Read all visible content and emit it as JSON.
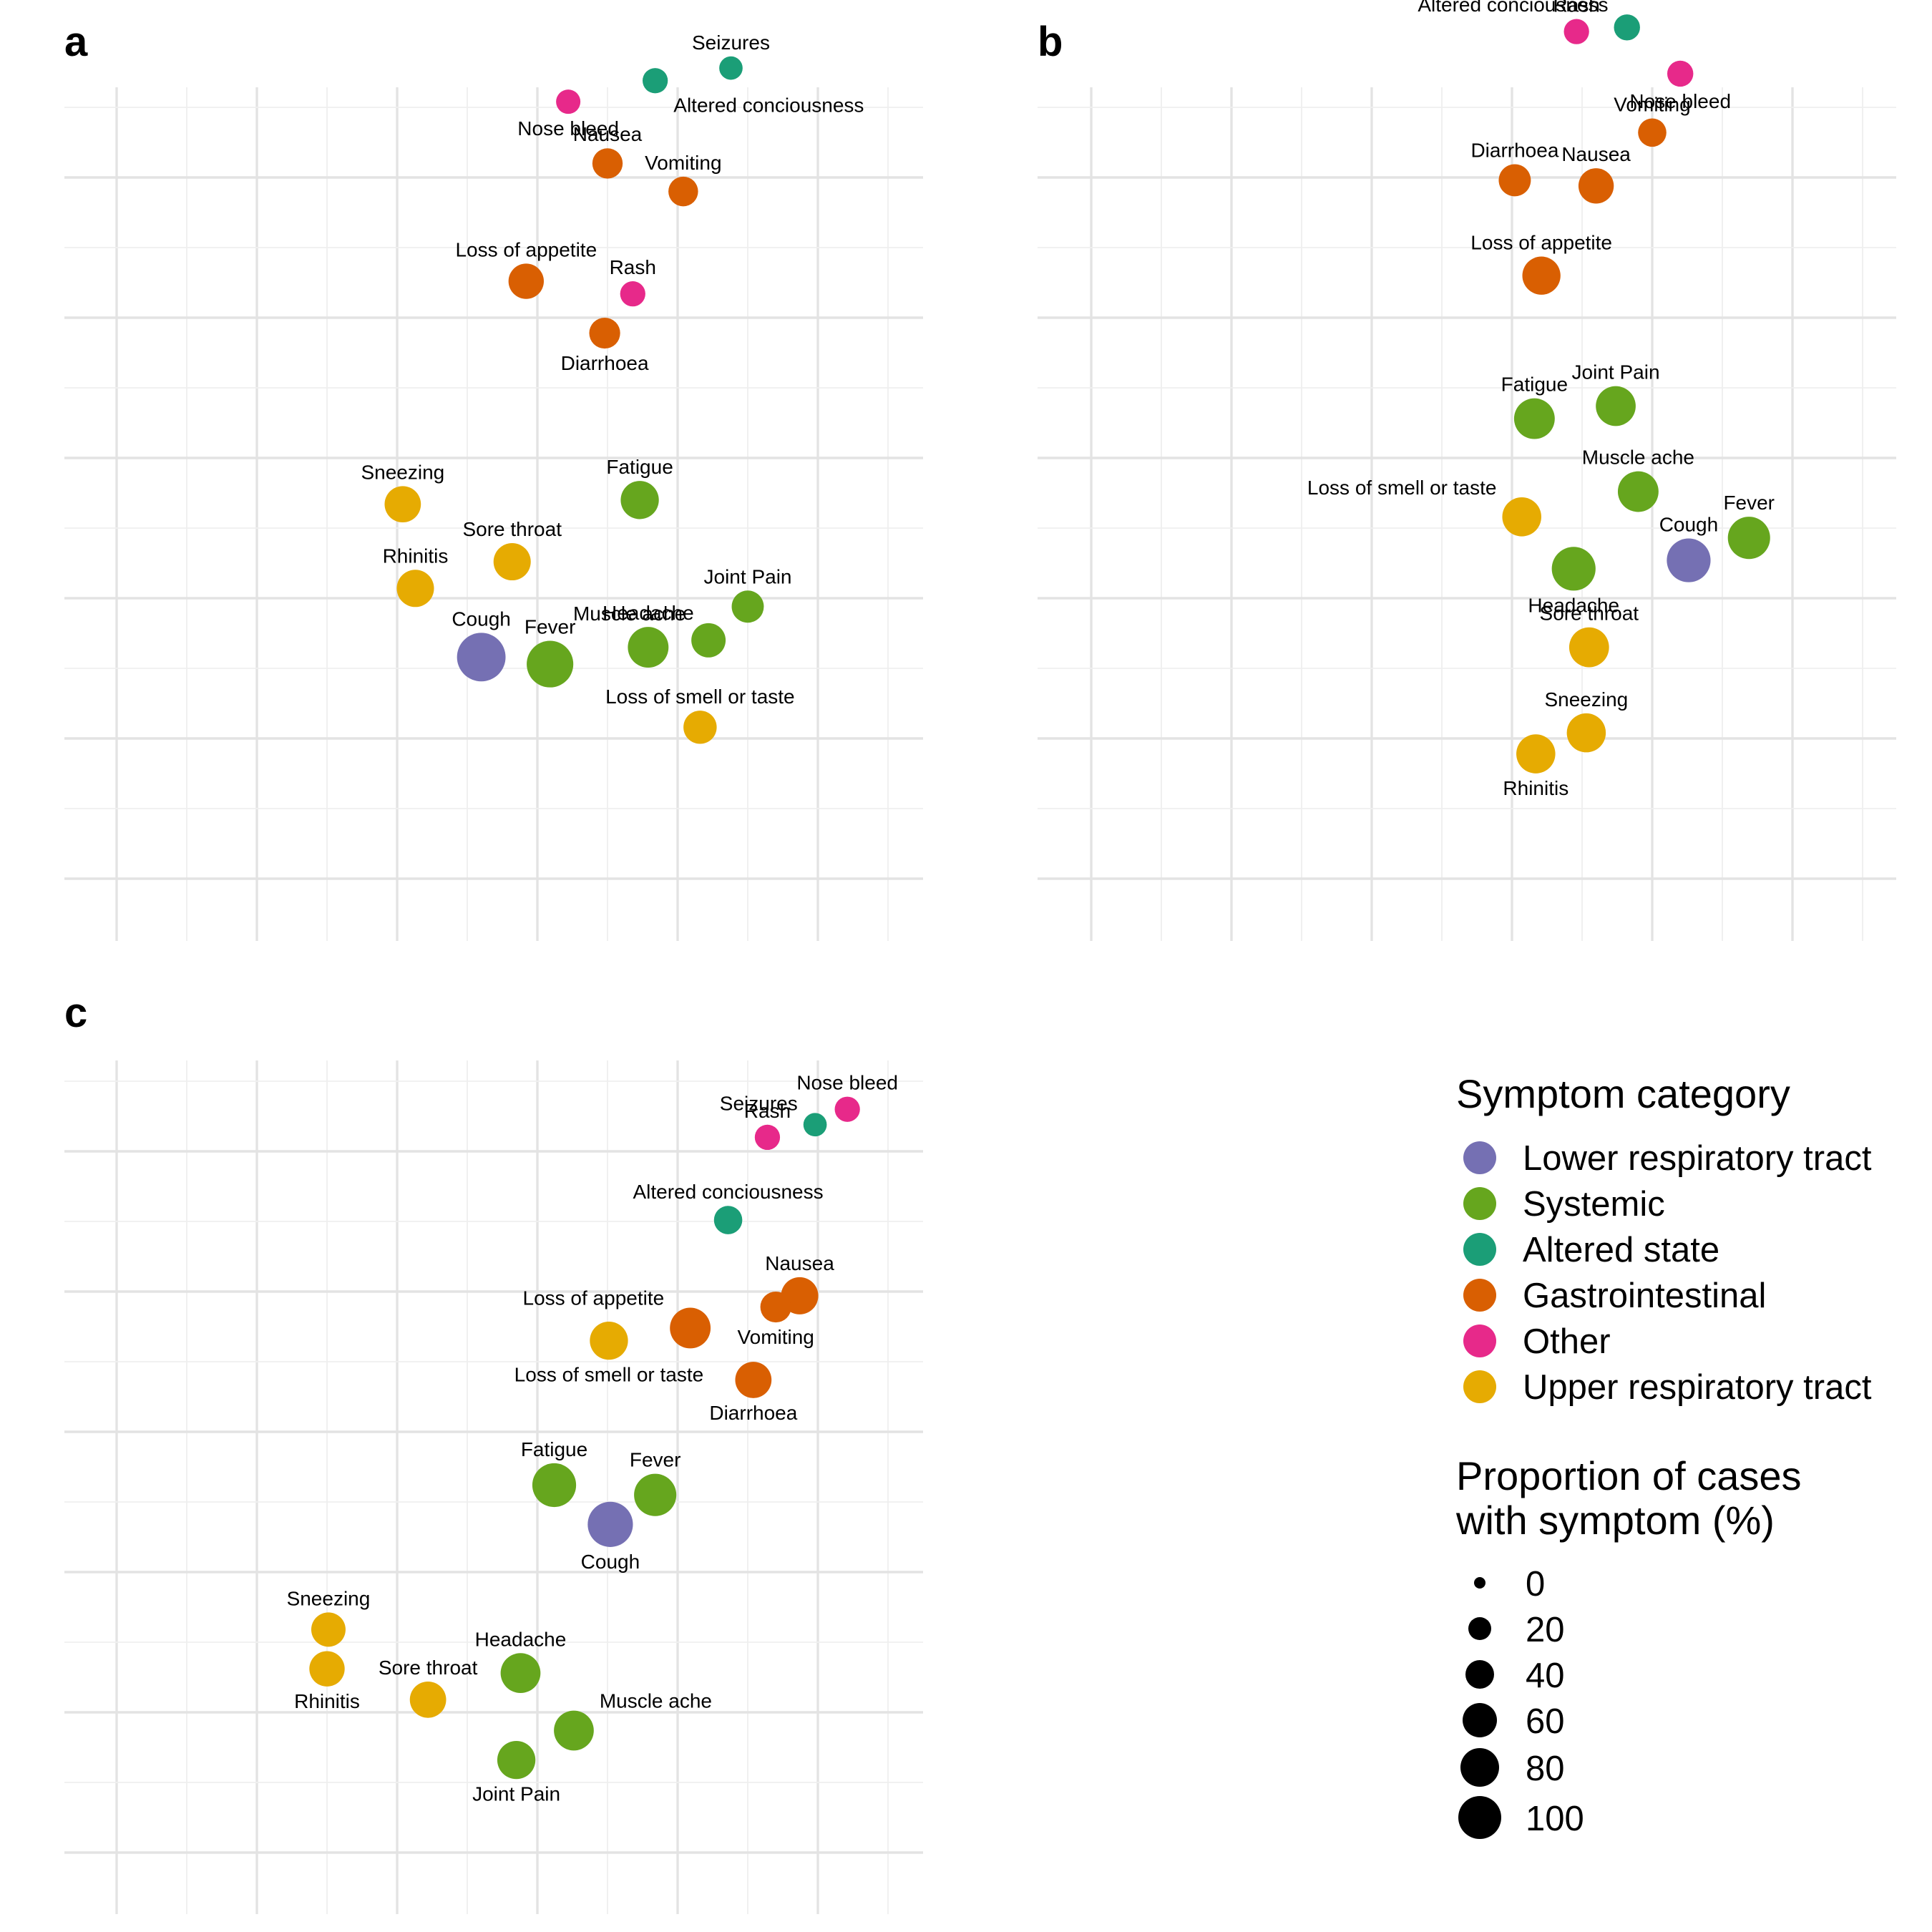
{
  "chart_data": [
    {
      "type": "scatter",
      "panel_label": "a",
      "grid": true,
      "points": [
        {
          "label": "Seizures",
          "category": "Altered state",
          "x": 4.38,
          "y": 4.78,
          "size": 6
        },
        {
          "label": "Altered conciousness",
          "category": "Altered state",
          "x": 3.84,
          "y": 4.69,
          "size": 8
        },
        {
          "label": "Nose bleed",
          "category": "Other",
          "x": 3.22,
          "y": 4.54,
          "size": 7
        },
        {
          "label": "Nausea",
          "category": "Gastrointestinal",
          "x": 3.5,
          "y": 4.1,
          "size": 15
        },
        {
          "label": "Vomiting",
          "category": "Gastrointestinal",
          "x": 4.04,
          "y": 3.9,
          "size": 14
        },
        {
          "label": "Loss of appetite",
          "category": "Gastrointestinal",
          "x": 2.92,
          "y": 3.26,
          "size": 24
        },
        {
          "label": "Rash",
          "category": "Other",
          "x": 3.68,
          "y": 3.17,
          "size": 8
        },
        {
          "label": "Diarrhoea",
          "category": "Gastrointestinal",
          "x": 3.48,
          "y": 2.89,
          "size": 16
        },
        {
          "label": "Fatigue",
          "category": "Systemic",
          "x": 3.73,
          "y": 1.7,
          "size": 30
        },
        {
          "label": "Sneezing",
          "category": "Upper respiratory tract",
          "x": 2.04,
          "y": 1.67,
          "size": 26
        },
        {
          "label": "Sore throat",
          "category": "Upper respiratory tract",
          "x": 2.82,
          "y": 1.26,
          "size": 28
        },
        {
          "label": "Joint Pain",
          "category": "Systemic",
          "x": 4.5,
          "y": 0.94,
          "size": 18
        },
        {
          "label": "Rhinitis",
          "category": "Upper respiratory tract",
          "x": 2.13,
          "y": 1.07,
          "size": 28
        },
        {
          "label": "Muscle ache",
          "category": "Systemic",
          "x": 4.22,
          "y": 0.7,
          "size": 22
        },
        {
          "label": "Cough",
          "category": "Lower respiratory tract",
          "x": 2.6,
          "y": 0.58,
          "size": 58
        },
        {
          "label": "Fever",
          "category": "Systemic",
          "x": 3.09,
          "y": 0.53,
          "size": 52
        },
        {
          "label": "Headache",
          "category": "Systemic",
          "x": 3.79,
          "y": 0.65,
          "size": 36
        },
        {
          "label": "Loss of smell or taste",
          "category": "Upper respiratory tract",
          "x": 4.16,
          "y": 0.08,
          "size": 20
        }
      ]
    },
    {
      "type": "scatter",
      "panel_label": "b",
      "grid": true,
      "points": [
        {
          "label": "Seizures",
          "category": "Altered state",
          "x": 4.21,
          "y": 5.42,
          "size": 6
        },
        {
          "label": "Altered conciousness",
          "category": "Altered state",
          "x": 3.82,
          "y": 5.07,
          "size": 9
        },
        {
          "label": "Rash",
          "category": "Other",
          "x": 3.46,
          "y": 5.04,
          "size": 8
        },
        {
          "label": "Nose bleed",
          "category": "Other",
          "x": 4.2,
          "y": 4.74,
          "size": 9
        },
        {
          "label": "Vomiting",
          "category": "Gastrointestinal",
          "x": 4.0,
          "y": 4.32,
          "size": 12
        },
        {
          "label": "Diarrhoea",
          "category": "Gastrointestinal",
          "x": 3.02,
          "y": 3.98,
          "size": 18
        },
        {
          "label": "Nausea",
          "category": "Gastrointestinal",
          "x": 3.6,
          "y": 3.94,
          "size": 24
        },
        {
          "label": "Loss of appetite",
          "category": "Gastrointestinal",
          "x": 3.21,
          "y": 3.3,
          "size": 30
        },
        {
          "label": "Joint Pain",
          "category": "Systemic",
          "x": 3.74,
          "y": 2.37,
          "size": 34
        },
        {
          "label": "Fatigue",
          "category": "Systemic",
          "x": 3.16,
          "y": 2.28,
          "size": 36
        },
        {
          "label": "Muscle ache",
          "category": "Systemic",
          "x": 3.9,
          "y": 1.76,
          "size": 36
        },
        {
          "label": "Loss of smell or taste",
          "category": "Upper respiratory tract",
          "x": 3.07,
          "y": 1.58,
          "size": 32
        },
        {
          "label": "Fever",
          "category": "Systemic",
          "x": 4.69,
          "y": 1.43,
          "size": 40
        },
        {
          "label": "Cough",
          "category": "Lower respiratory tract",
          "x": 4.26,
          "y": 1.27,
          "size": 44
        },
        {
          "label": "Headache",
          "category": "Systemic",
          "x": 3.44,
          "y": 1.21,
          "size": 44
        },
        {
          "label": "Sore throat",
          "category": "Upper respiratory tract",
          "x": 3.55,
          "y": 0.65,
          "size": 34
        },
        {
          "label": "Sneezing",
          "category": "Upper respiratory tract",
          "x": 3.53,
          "y": 0.04,
          "size": 32
        },
        {
          "label": "Rhinitis",
          "category": "Upper respiratory tract",
          "x": 3.17,
          "y": -0.11,
          "size": 32
        }
      ]
    },
    {
      "type": "scatter",
      "panel_label": "c",
      "grid": true,
      "points": [
        {
          "label": "Nose bleed",
          "category": "Other",
          "x": 5.21,
          "y": 4.3,
          "size": 8
        },
        {
          "label": "Seizures",
          "category": "Altered state",
          "x": 4.98,
          "y": 4.19,
          "size": 6
        },
        {
          "label": "Rash",
          "category": "Other",
          "x": 4.64,
          "y": 4.1,
          "size": 8
        },
        {
          "label": "Altered conciousness",
          "category": "Altered state",
          "x": 4.36,
          "y": 3.51,
          "size": 12
        },
        {
          "label": "Nausea",
          "category": "Gastrointestinal",
          "x": 4.87,
          "y": 2.97,
          "size": 28
        },
        {
          "label": "Vomiting",
          "category": "Gastrointestinal",
          "x": 4.7,
          "y": 2.89,
          "size": 16
        },
        {
          "label": "Loss of appetite",
          "category": "Gastrointestinal",
          "x": 4.09,
          "y": 2.74,
          "size": 36
        },
        {
          "label": "Loss of smell or taste",
          "category": "Upper respiratory tract",
          "x": 3.51,
          "y": 2.65,
          "size": 30
        },
        {
          "label": "Diarrhoea",
          "category": "Gastrointestinal",
          "x": 4.54,
          "y": 2.37,
          "size": 26
        },
        {
          "label": "Fatigue",
          "category": "Systemic",
          "x": 3.12,
          "y": 1.62,
          "size": 44
        },
        {
          "label": "Fever",
          "category": "Systemic",
          "x": 3.84,
          "y": 1.55,
          "size": 40
        },
        {
          "label": "Cough",
          "category": "Lower respiratory tract",
          "x": 3.52,
          "y": 1.34,
          "size": 48
        },
        {
          "label": "Sneezing",
          "category": "Upper respiratory tract",
          "x": 1.51,
          "y": 0.59,
          "size": 22
        },
        {
          "label": "Rhinitis",
          "category": "Upper respiratory tract",
          "x": 1.5,
          "y": 0.31,
          "size": 24
        },
        {
          "label": "Headache",
          "category": "Systemic",
          "x": 2.88,
          "y": 0.28,
          "size": 34
        },
        {
          "label": "Sore throat",
          "category": "Upper respiratory tract",
          "x": 2.22,
          "y": 0.09,
          "size": 26
        },
        {
          "label": "Muscle ache",
          "category": "Systemic",
          "x": 3.26,
          "y": -0.13,
          "size": 34
        },
        {
          "label": "Joint Pain",
          "category": "Systemic",
          "x": 2.85,
          "y": -0.34,
          "size": 30
        }
      ]
    }
  ],
  "legend": {
    "color_title": "Symptom category",
    "color_items": [
      {
        "label": "Lower respiratory tract",
        "color": "#7570B3"
      },
      {
        "label": "Systemic",
        "color": "#66A61E"
      },
      {
        "label": "Altered state",
        "color": "#1B9E77"
      },
      {
        "label": "Gastrointestinal",
        "color": "#D95F02"
      },
      {
        "label": "Other",
        "color": "#E7298A"
      },
      {
        "label": "Upper respiratory tract",
        "color": "#E6AB02"
      }
    ],
    "size_title_line1": "Proportion of cases",
    "size_title_line2": "with symptom (%)",
    "size_items": [
      {
        "label": "0",
        "value": 0
      },
      {
        "label": "20",
        "value": 20
      },
      {
        "label": "40",
        "value": 40
      },
      {
        "label": "60",
        "value": 60
      },
      {
        "label": "80",
        "value": 80
      },
      {
        "label": "100",
        "value": 100
      }
    ]
  }
}
